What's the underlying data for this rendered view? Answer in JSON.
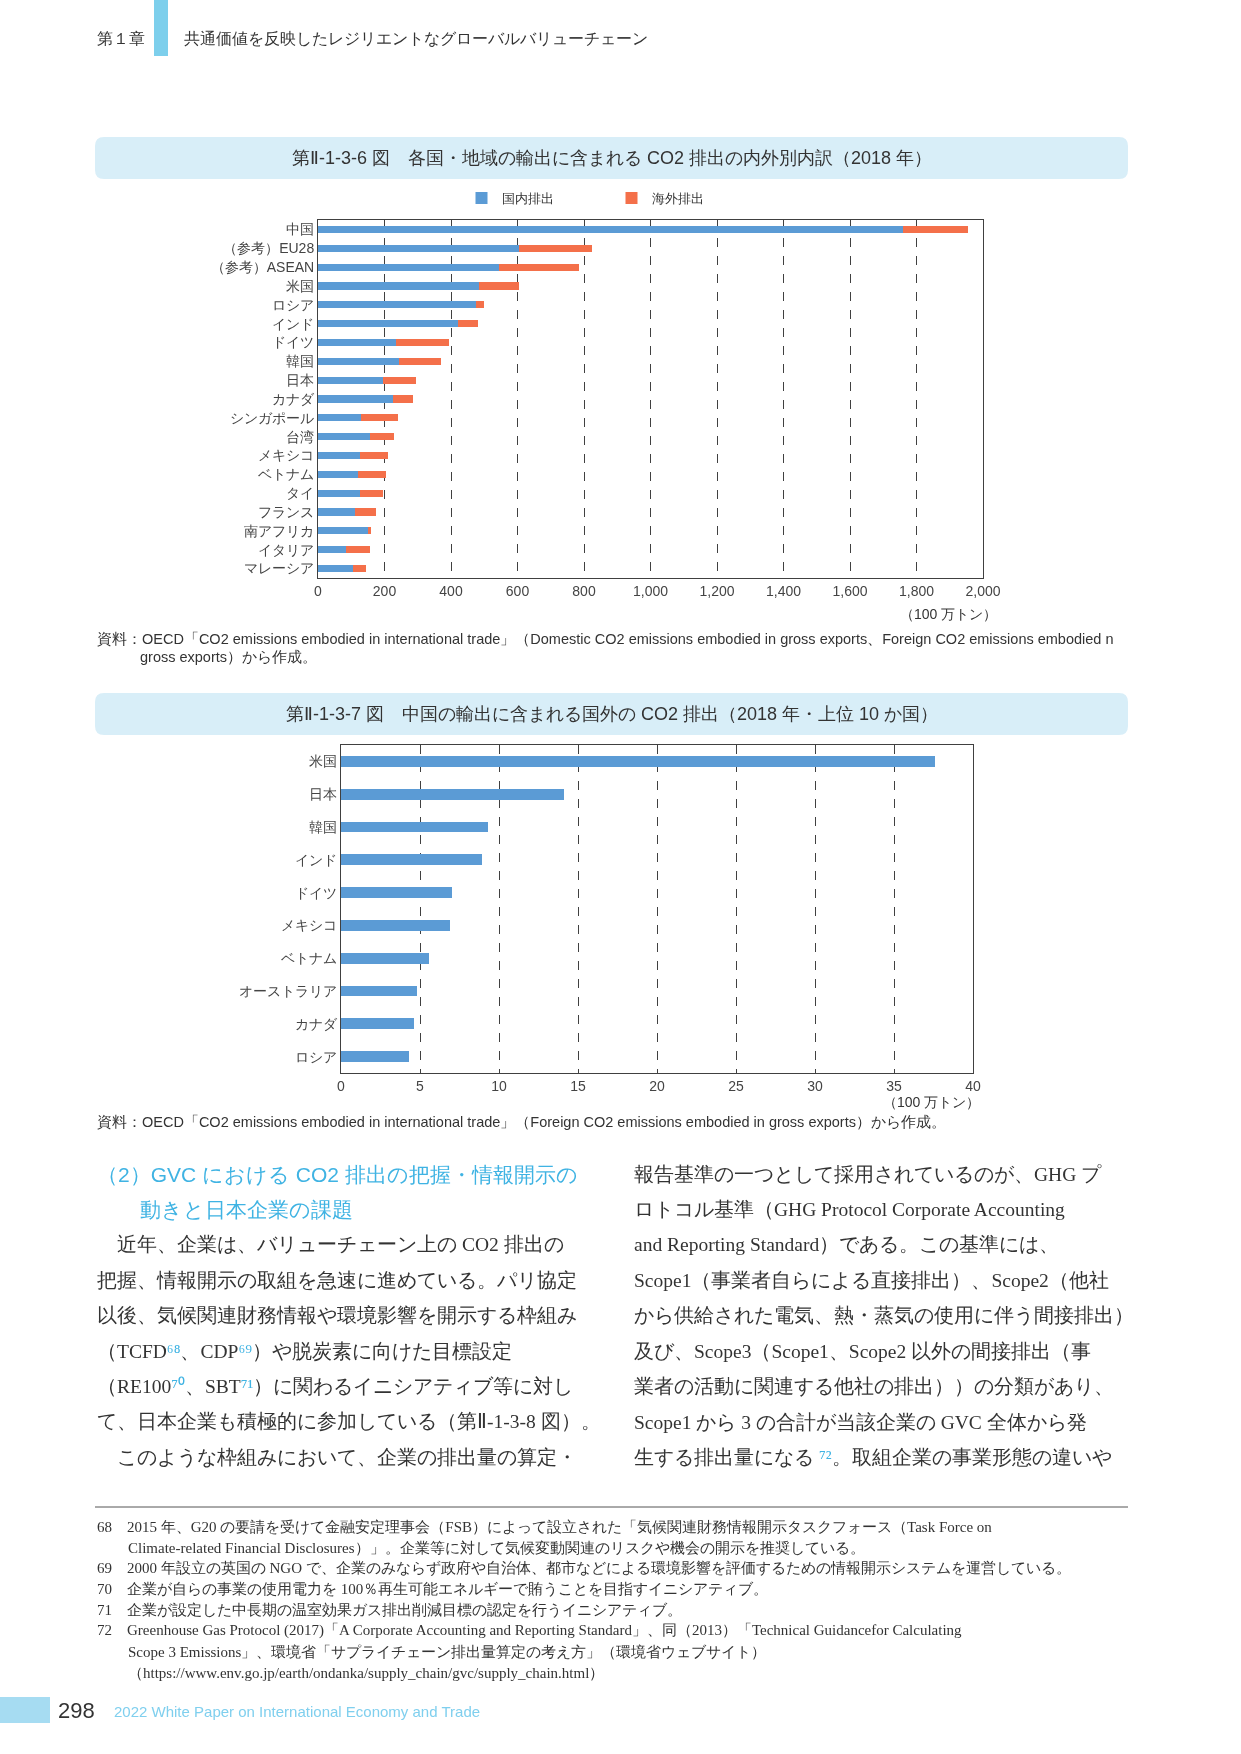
{
  "chart_data": [
    {
      "type": "other",
      "annotations": [
        "第１章",
        "共通価値を反映したレジリエントなグローバルバリューチェーン"
      ]
    },
    {
      "type": "bar",
      "orientation": "horizontal",
      "stacked": true,
      "title": "第Ⅱ-1-3-6 図　各国・地域の輸出に含まれる CO2 排出の内外別内訳（2018 年）",
      "categories": [
        "中国",
        "（参考）EU28",
        "（参考）ASEAN",
        "米国",
        "ロシア",
        "インド",
        "ドイツ",
        "韓国",
        "日本",
        "カナダ",
        "シンガポール",
        "台湾",
        "メキシコ",
        "ベトナム",
        "タイ",
        "フランス",
        "南アフリカ",
        "イタリア",
        "マレーシア"
      ],
      "series": [
        {
          "name": "国内排出",
          "color": "#5b9bd5",
          "values": [
            1760,
            605,
            545,
            485,
            475,
            420,
            235,
            245,
            195,
            225,
            130,
            155,
            125,
            120,
            125,
            110,
            150,
            85,
            105
          ]
        },
        {
          "name": "海外排出",
          "color": "#f4704a",
          "values": [
            195,
            220,
            240,
            120,
            25,
            60,
            160,
            125,
            100,
            60,
            110,
            75,
            85,
            85,
            70,
            65,
            10,
            70,
            40
          ]
        }
      ],
      "xlim": [
        0,
        2000
      ],
      "xticks": [
        0,
        200,
        400,
        600,
        800,
        {
          "value": 1000,
          "label": "1,000"
        },
        {
          "value": 1200,
          "label": "1,200"
        },
        {
          "value": 1400,
          "label": "1,400"
        },
        {
          "value": 1600,
          "label": "1,600"
        },
        {
          "value": 1800,
          "label": "1,800"
        },
        {
          "value": 2000,
          "label": "2,000"
        }
      ],
      "xlabel": "（100 万トン）",
      "grid": "x",
      "legend": "top",
      "annotations": [
        "資料：OECD「CO2 emissions embodied in international trade」（Domestic CO2 emissions embodied in gross exports、Foreign CO2 emissions embodied n gross exports）から作成。"
      ]
    },
    {
      "type": "bar",
      "orientation": "horizontal",
      "title": "第Ⅱ-1-3-7 図　中国の輸出に含まれる国外の CO2 排出（2018 年・上位 10 か国）",
      "categories": [
        "米国",
        "日本",
        "韓国",
        "インド",
        "ドイツ",
        "メキシコ",
        "ベトナム",
        "オーストラリア",
        "カナダ",
        "ロシア"
      ],
      "values": [
        37.6,
        14.1,
        9.3,
        8.9,
        7.0,
        6.9,
        5.6,
        4.8,
        4.6,
        4.3
      ],
      "color": "#5b9bd5",
      "xlim": [
        0,
        40
      ],
      "xticks": [
        0,
        5,
        10,
        15,
        20,
        25,
        30,
        35,
        40
      ],
      "xlabel": "（100 万トン）",
      "grid": "x",
      "annotations": [
        "資料：OECD「CO2 emissions embodied in international trade」（Foreign CO2 emissions embodied in gross exports）から作成。"
      ]
    },
    {
      "type": "other",
      "title": "（2）GVC における CO2 排出の把握・情報開示の動きと日本企業の課題",
      "annotations": [
        "近年、企業は、バリューチェーン上の CO2 排出の把握、情報開示の取組を急速に進めている。パリ協定以後、気候関連財務情報や環境影響を開示する枠組み（TCFD⁶⁸、CDP⁶⁹）や脱炭素に向けた目標設定（RE100⁷⁰、SBT⁷¹）に関わるイニシアティブ等に対して、日本企業も積極的に参加している（第Ⅱ-1-3-8 図）。このような枠組みにおいて、企業の排出量の算定・",
        "報告基準の一つとして採用されているのが、GHG プロトコル基準（GHG Protocol Corporate Accounting and Reporting Standard）である。この基準には、Scope1（事業者自らによる直接排出）、Scope2（他社から供給された電気、熱・蒸気の使用に伴う間接排出）及び、Scope3（Scope1、Scope2 以外の間接排出（事業者の活動に関連する他社の排出））の分類があり、Scope1 から 3 の合計が当該企業の GVC 全体から発生する排出量になる ⁷²。取組企業の事業形態の違いや",
        "68 2015 年、G20 の要請を受けて金融安定理事会（FSB）によって設立された「気候関連財務情報開示タスクフォース（Task Force on Climate-related Financial Disclosures）」。企業等に対して気候変動関連のリスクや機会の開示を推奨している。",
        "69 2000 年設立の英国の NGO で、企業のみならず政府や自治体、都市などによる環境影響を評価するための情報開示システムを運営している。",
        "70 企業が自らの事業の使用電力を 100％再生可能エネルギーで賄うことを目指すイニシアティブ。",
        "71 企業が設定した中長期の温室効果ガス排出削減目標の認定を行うイニシアティブ。",
        "72 Greenhouse Gas Protocol (2017)「A Corporate Accounting and Reporting Standard」、同（2013）「Technical Guidancefor Calculating Scope 3 Emissions」、環境省「サプライチェーン排出量算定の考え方」（環境省ウェブサイト）（https://www.env.go.jp/earth/ondanka/supply_chain/gvc/supply_chain.html）",
        "298",
        "2022 White Paper on International Economy and Trade"
      ]
    }
  ]
}
